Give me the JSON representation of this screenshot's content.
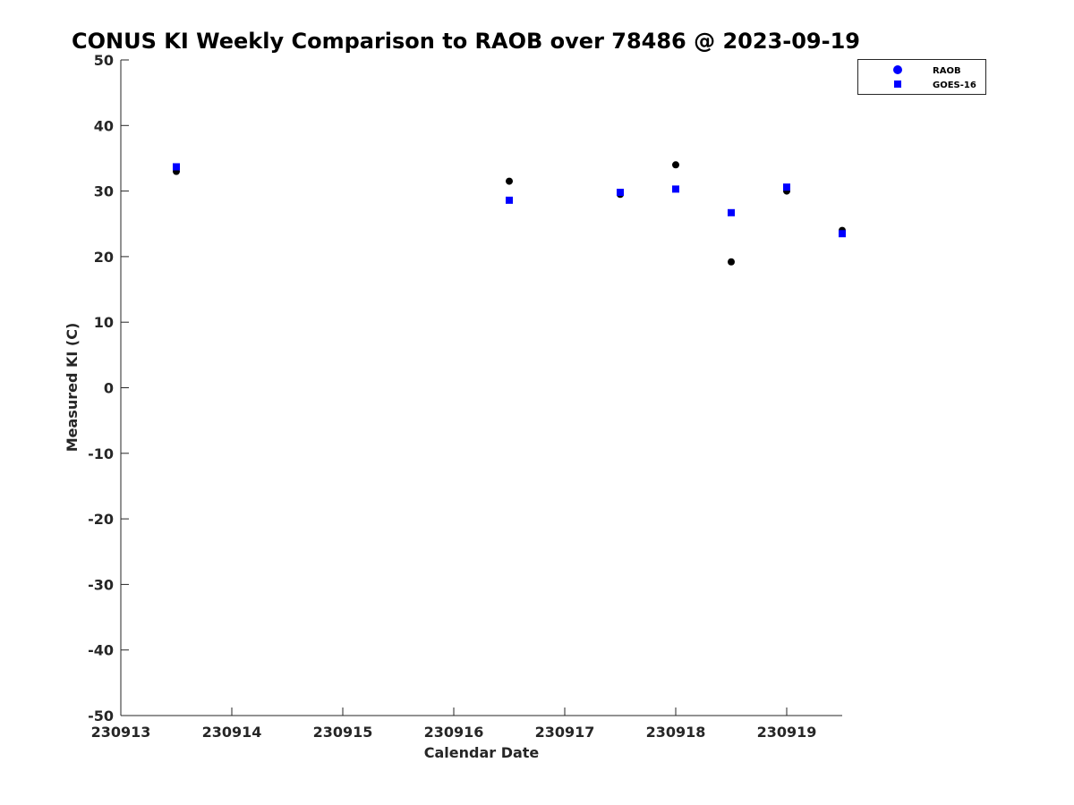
{
  "chart_data": {
    "type": "scatter",
    "title": "CONUS KI Weekly Comparison to RAOB over 78486 @ 2023-09-19",
    "xlabel": "Calendar Date",
    "ylabel": "Measured KI (C)",
    "xlim": [
      0,
      6.5
    ],
    "ylim": [
      -50,
      50
    ],
    "x_tick_values": [
      0,
      1,
      2,
      3,
      4,
      5,
      6
    ],
    "x_tick_labels": [
      "230913",
      "230914",
      "230915",
      "230916",
      "230917",
      "230918",
      "230919"
    ],
    "y_ticks": [
      -50,
      -40,
      -30,
      -20,
      -10,
      0,
      10,
      20,
      30,
      40,
      50
    ],
    "grid": false,
    "legend_position": "top-right",
    "series": [
      {
        "name": "RAOB",
        "marker": "circle",
        "color": "#000000",
        "legend_color": "#0000ff",
        "x": [
          0.5,
          3.5,
          4.5,
          5.0,
          5.5,
          6.0,
          6.5
        ],
        "y": [
          33.0,
          31.5,
          29.5,
          34.0,
          19.2,
          30.0,
          24.0
        ]
      },
      {
        "name": "GOES-16",
        "marker": "square",
        "color": "#0000ff",
        "legend_color": "#0000ff",
        "x": [
          0.5,
          3.5,
          4.5,
          5.0,
          5.5,
          6.0,
          6.5
        ],
        "y": [
          33.7,
          28.6,
          29.8,
          30.3,
          26.7,
          30.6,
          23.5
        ]
      }
    ]
  }
}
